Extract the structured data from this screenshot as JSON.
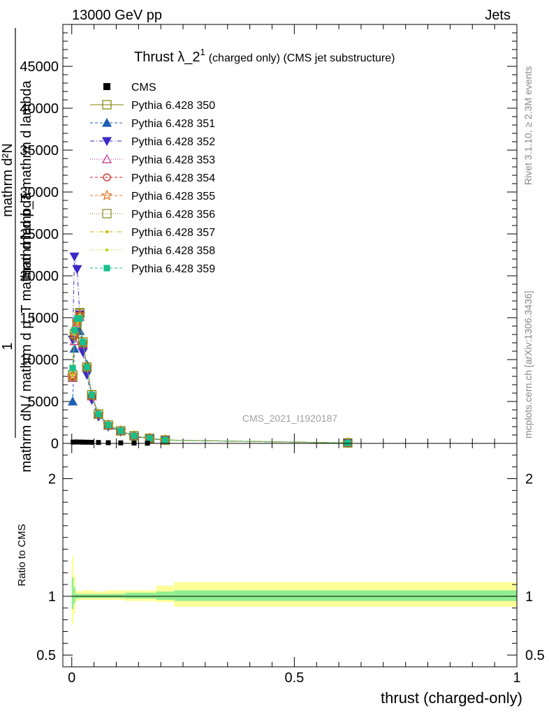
{
  "header": {
    "left": "13000 GeV pp",
    "right": "Jets"
  },
  "side_labels": {
    "rivet": "Rivet 3.1.10, ≥ 2.3M events",
    "mcplots": "mcplots.cern.ch [arXiv:1306.3436]"
  },
  "watermark": "CMS_2021_I1920187",
  "chart_data": [
    {
      "type": "line",
      "title_main": "Thrust λ_2",
      "title_sup": "1",
      "title_rest": "(charged only) (CMS jet substructure)",
      "xlabel": "thrust (charged-only)",
      "ylabel_top_line": "1",
      "ylabel_overlapped": [
        "mathrm d²N",
        "mathrm d p_T mathrm d lambda",
        "mathrm dN / mathrm d p_T mathrm d lambda"
      ],
      "xlim": [
        -0.02,
        1.0
      ],
      "ylim": [
        0,
        50000
      ],
      "y_ticks": [
        0,
        5000,
        10000,
        15000,
        20000,
        25000,
        30000,
        35000,
        40000,
        45000
      ],
      "y_tick_labels": [
        "0",
        "5000",
        "10000",
        "15000",
        "20000",
        "25000",
        "30000",
        "35000",
        "40000",
        "45000"
      ],
      "x_ticks": [
        0,
        0.5,
        1
      ],
      "x_tick_labels": [
        "0",
        "0.5",
        "1"
      ],
      "legend_position": "top-left",
      "data": {
        "name": "CMS",
        "x": [
          0.003,
          0.01,
          0.017,
          0.025,
          0.034,
          0.045,
          0.06,
          0.082,
          0.11,
          0.14,
          0.17
        ],
        "y": [
          150,
          170,
          160,
          150,
          140,
          130,
          110,
          80,
          60,
          40,
          20
        ]
      },
      "series": [
        {
          "name": "Pythia 6.428 350",
          "color": "#808000",
          "dash": "",
          "marker": "square-open",
          "x": [
            0.002,
            0.006,
            0.012,
            0.018,
            0.025,
            0.034,
            0.045,
            0.06,
            0.082,
            0.11,
            0.14,
            0.175,
            0.21,
            0.62
          ],
          "y": [
            8200,
            13100,
            14300,
            15600,
            12100,
            9100,
            5800,
            3500,
            2200,
            1500,
            900,
            600,
            400,
            50
          ]
        },
        {
          "name": "Pythia 6.428 351",
          "color": "#1f5fb5",
          "dash": "4,3",
          "marker": "triangle-up-filled",
          "x": [
            0.002,
            0.006,
            0.012,
            0.018,
            0.025,
            0.034,
            0.045,
            0.06,
            0.082,
            0.11,
            0.14,
            0.175,
            0.21,
            0.62
          ],
          "y": [
            5000,
            11300,
            13400,
            13400,
            11800,
            9400,
            5800,
            3500,
            2200,
            1500,
            900,
            600,
            400,
            50
          ]
        },
        {
          "name": "Pythia 6.428 352",
          "color": "#3a2ac6",
          "dash": "6,3,1,3",
          "marker": "triangle-down-filled",
          "x": [
            0.002,
            0.006,
            0.012,
            0.018,
            0.025,
            0.034,
            0.045,
            0.06,
            0.082,
            0.11,
            0.14,
            0.175,
            0.21,
            0.62
          ],
          "y": [
            12400,
            22300,
            20800,
            15400,
            10900,
            8200,
            5200,
            3200,
            2000,
            1400,
            800,
            550,
            380,
            50
          ]
        },
        {
          "name": "Pythia 6.428 353",
          "color": "#c02a8a",
          "dash": "1,2",
          "marker": "triangle-up-open",
          "x": [
            0.002,
            0.006,
            0.012,
            0.018,
            0.025,
            0.034,
            0.045,
            0.06,
            0.082,
            0.11,
            0.14,
            0.175,
            0.21,
            0.62
          ],
          "y": [
            7800,
            12200,
            14400,
            15100,
            11800,
            9000,
            5600,
            3400,
            2100,
            1450,
            880,
            580,
            390,
            50
          ]
        },
        {
          "name": "Pythia 6.428 354",
          "color": "#d71a1a",
          "dash": "4,3",
          "marker": "circle-open",
          "x": [
            0.002,
            0.006,
            0.012,
            0.018,
            0.025,
            0.034,
            0.045,
            0.06,
            0.082,
            0.11,
            0.14,
            0.175,
            0.21,
            0.62
          ],
          "y": [
            8000,
            12800,
            14600,
            15300,
            12000,
            9100,
            5700,
            3450,
            2150,
            1480,
            890,
            590,
            395,
            50
          ]
        },
        {
          "name": "Pythia 6.428 355",
          "color": "#e8731a",
          "dash": "4,3",
          "marker": "star-open",
          "x": [
            0.002,
            0.006,
            0.012,
            0.018,
            0.025,
            0.034,
            0.045,
            0.06,
            0.082,
            0.11,
            0.14,
            0.175,
            0.21,
            0.62
          ],
          "y": [
            8100,
            13000,
            14500,
            15400,
            12000,
            9100,
            5750,
            3480,
            2180,
            1490,
            900,
            600,
            400,
            50
          ]
        },
        {
          "name": "Pythia 6.428 356",
          "color": "#7f8a1a",
          "dash": "1,2",
          "marker": "square-open",
          "x": [
            0.002,
            0.006,
            0.012,
            0.018,
            0.025,
            0.034,
            0.045,
            0.06,
            0.082,
            0.11,
            0.14,
            0.175,
            0.21,
            0.62
          ],
          "y": [
            8000,
            13000,
            14300,
            15500,
            12100,
            9100,
            5800,
            3500,
            2200,
            1500,
            900,
            600,
            400,
            50
          ]
        },
        {
          "name": "Pythia 6.428 357",
          "color": "#c8b400",
          "dash": "6,3,1,3",
          "marker": "dot",
          "x": [
            0.002,
            0.006,
            0.012,
            0.018,
            0.025,
            0.034,
            0.045,
            0.06,
            0.082,
            0.11,
            0.14,
            0.175,
            0.21,
            0.62
          ],
          "y": [
            8200,
            13100,
            14400,
            15400,
            12100,
            9100,
            5800,
            3500,
            2200,
            1500,
            900,
            600,
            400,
            50
          ]
        },
        {
          "name": "Pythia 6.428 358",
          "color": "#b5d31a",
          "dash": "1,2",
          "marker": "dot",
          "x": [
            0.002,
            0.006,
            0.012,
            0.018,
            0.025,
            0.034,
            0.045,
            0.06,
            0.082,
            0.11,
            0.14,
            0.175,
            0.21,
            0.62
          ],
          "y": [
            8100,
            13000,
            14400,
            15400,
            12000,
            9100,
            5800,
            3500,
            2200,
            1500,
            900,
            600,
            400,
            50
          ]
        },
        {
          "name": "Pythia 6.428 359",
          "color": "#1abf8a",
          "dash": "4,3",
          "marker": "square-filled",
          "x": [
            0.002,
            0.006,
            0.012,
            0.018,
            0.025,
            0.034,
            0.045,
            0.06,
            0.082,
            0.11,
            0.14,
            0.175,
            0.21,
            0.62
          ],
          "y": [
            9000,
            13500,
            14900,
            14900,
            12100,
            9100,
            5800,
            3500,
            2200,
            1500,
            900,
            600,
            400,
            50
          ]
        }
      ]
    },
    {
      "type": "area",
      "ylabel": "Ratio to CMS",
      "xlim": [
        -0.02,
        1.0
      ],
      "ylim": [
        0.4,
        2.3
      ],
      "y_ticks": [
        0.5,
        1,
        2
      ],
      "y_tick_labels": [
        "0.5",
        "1",
        "2"
      ],
      "x_ticks": [
        0,
        0.5,
        1
      ],
      "x_tick_labels": [
        "0",
        "0.5",
        "1"
      ],
      "reference_line": 1,
      "band_bins": [
        0,
        0.004,
        0.008,
        0.016,
        0.024,
        0.035,
        0.05,
        0.075,
        0.12,
        0.19,
        0.23,
        1.0
      ],
      "outer_band": {
        "color": "#ffff99",
        "low": [
          0.76,
          0.86,
          0.96,
          0.97,
          0.97,
          0.97,
          0.97,
          0.97,
          0.96,
          0.95,
          0.91
        ],
        "high": [
          1.34,
          1.18,
          1.05,
          1.04,
          1.05,
          1.05,
          1.04,
          1.05,
          1.05,
          1.09,
          1.12
        ]
      },
      "inner_band": {
        "color": "#90ee90",
        "low": [
          0.89,
          0.94,
          0.98,
          0.985,
          0.985,
          0.985,
          0.985,
          0.985,
          0.98,
          0.97,
          0.96
        ],
        "high": [
          1.16,
          1.08,
          1.02,
          1.02,
          1.02,
          1.02,
          1.02,
          1.02,
          1.03,
          1.04,
          1.05
        ]
      }
    }
  ]
}
